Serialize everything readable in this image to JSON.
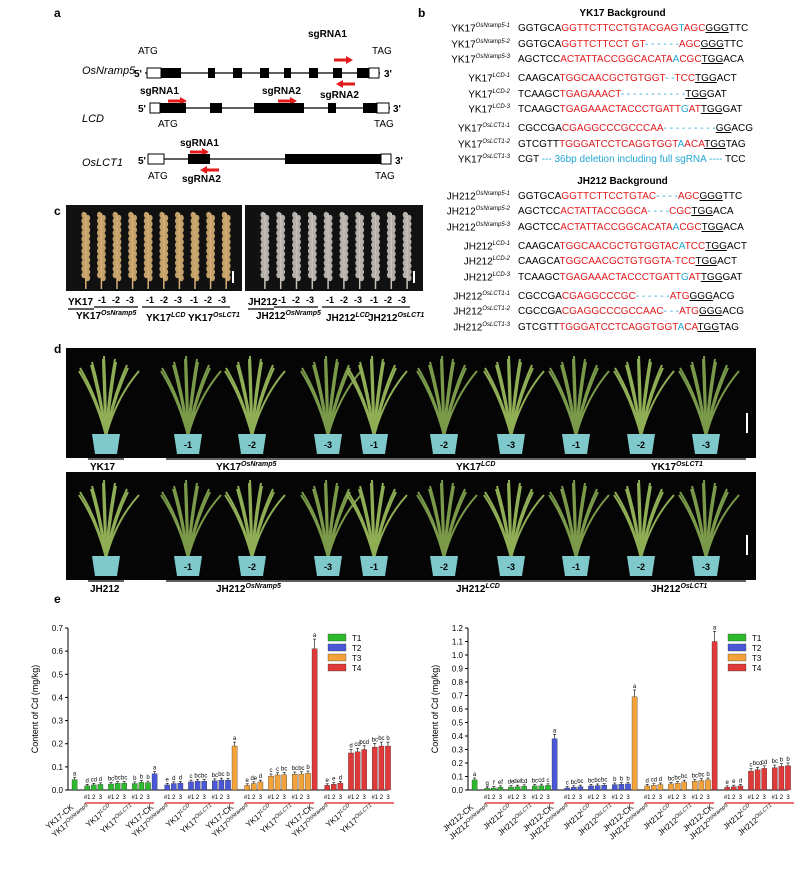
{
  "panels": {
    "a": "a",
    "b": "b",
    "c": "c",
    "d": "d",
    "e": "e"
  },
  "panel_a": {
    "genes": [
      {
        "name": "OsNramp5",
        "start": "ATG",
        "stop": "TAG",
        "five": "5'",
        "three": "3'",
        "sg1": "sgRNA1",
        "sg2": "sgRNA2"
      },
      {
        "name": "LCD",
        "start": "ATG",
        "stop": "TAG",
        "five": "5'",
        "three": "3'",
        "sg1": "sgRNA1",
        "sg2": "sgRNA2"
      },
      {
        "name": "OsLCT1",
        "start": "ATG",
        "stop": "TAG",
        "five": "5'",
        "three": "3'",
        "sg1": "sgRNA1",
        "sg2": "sgRNA2"
      }
    ]
  },
  "panel_b": {
    "yk_title": "YK17  Background",
    "jh_title": "JH212 Background",
    "yk_rows": [
      {
        "base": "YK17",
        "sup": "OsNramp5-1",
        "seq": [
          [
            "k",
            "GGTGCA"
          ],
          [
            "r",
            "GGTTCTTCCTGTACGAG"
          ],
          [
            "b",
            "T"
          ],
          [
            "r",
            "AGC"
          ],
          [
            "u",
            "GGG"
          ],
          [
            "k",
            "TTC"
          ]
        ]
      },
      {
        "base": "YK17",
        "sup": "OsNramp5-2",
        "seq": [
          [
            "k",
            "GGTGCA"
          ],
          [
            "r",
            "GGTTCTTCCT GT"
          ],
          [
            "b",
            "- - - - - -"
          ],
          [
            "r",
            "AGC"
          ],
          [
            "u",
            "GGG"
          ],
          [
            "k",
            "TTC"
          ]
        ]
      },
      {
        "base": "YK17",
        "sup": "OsNramp5-3",
        "seq": [
          [
            "k",
            "AGCTCC"
          ],
          [
            "r",
            "ACTATTACCGGCACATA"
          ],
          [
            "b",
            "A"
          ],
          [
            "r",
            "CGC"
          ],
          [
            "u",
            "TGG"
          ],
          [
            "k",
            "ACA"
          ]
        ]
      },
      {
        "base": "YK17",
        "sup": "LCD-1",
        "seq": [
          [
            "k",
            "CAAGCA"
          ],
          [
            "r",
            "TGGCAACGCTGTGGT"
          ],
          [
            "b",
            "- -"
          ],
          [
            "r",
            "TCC"
          ],
          [
            "u",
            "TGG"
          ],
          [
            "k",
            "ACT"
          ]
        ]
      },
      {
        "base": "YK17",
        "sup": "LCD-2",
        "seq": [
          [
            "k",
            "TCAAGC"
          ],
          [
            "r",
            "TGAGAAACT"
          ],
          [
            "b",
            "- - - - - - - - - - -"
          ],
          [
            "u",
            "TGG"
          ],
          [
            "k",
            "GAT"
          ]
        ]
      },
      {
        "base": "YK17",
        "sup": "LCD-3",
        "seq": [
          [
            "k",
            "TCAAGC"
          ],
          [
            "r",
            "TGAGAAACTACCCTGATT"
          ],
          [
            "b",
            "G"
          ],
          [
            "r",
            "AT"
          ],
          [
            "u",
            "TGG"
          ],
          [
            "k",
            "GAT"
          ]
        ]
      },
      {
        "base": "YK17",
        "sup": "OsLCT1-1",
        "seq": [
          [
            "k",
            "CGCCGA"
          ],
          [
            "r",
            "CGAGGCCCGCCCAA"
          ],
          [
            "b",
            "- - - - - - - - -"
          ],
          [
            "u",
            "GG"
          ],
          [
            "k",
            "ACG"
          ]
        ]
      },
      {
        "base": "YK17",
        "sup": "OsLCT1-2",
        "seq": [
          [
            "k",
            "GTCGTT"
          ],
          [
            "r",
            "TGGGATCCTCAGGTGGT"
          ],
          [
            "b",
            "A"
          ],
          [
            "r",
            "ACA"
          ],
          [
            "u",
            "TGG"
          ],
          [
            "k",
            "TAG"
          ]
        ]
      },
      {
        "base": "YK17",
        "sup": "OsLCT1-3",
        "seq": [
          [
            "k",
            "CGT"
          ],
          [
            "b",
            " --- 36bp deletion including full sgRNA ---- "
          ],
          [
            "k",
            "TCC"
          ]
        ]
      }
    ],
    "jh_rows": [
      {
        "base": "JH212",
        "sup": "OsNramp5-1",
        "seq": [
          [
            "k",
            "GGTGCA"
          ],
          [
            "r",
            "GGTTCTTCCTGTAC"
          ],
          [
            "b",
            "- - - -"
          ],
          [
            "r",
            "AGC"
          ],
          [
            "u",
            "GGG"
          ],
          [
            "k",
            "TTC"
          ]
        ]
      },
      {
        "base": "JH212",
        "sup": "OsNramp5-2",
        "seq": [
          [
            "k",
            "AGCTCC"
          ],
          [
            "r",
            "ACTATTACCGGCA"
          ],
          [
            "b",
            "- - - -"
          ],
          [
            "r",
            "CGC"
          ],
          [
            "u",
            "TGG"
          ],
          [
            "k",
            "ACA"
          ]
        ]
      },
      {
        "base": "JH212",
        "sup": "OsNramp5-3",
        "seq": [
          [
            "k",
            "AGCTCC"
          ],
          [
            "r",
            "ACTATTACCGGCACATA"
          ],
          [
            "b",
            "A"
          ],
          [
            "r",
            "CGC"
          ],
          [
            "u",
            "TGG"
          ],
          [
            "k",
            "ACA"
          ]
        ]
      },
      {
        "base": "JH212",
        "sup": "LCD-1",
        "seq": [
          [
            "k",
            "CAAGCA"
          ],
          [
            "r",
            "TGGCAACGCTGTGGTAC"
          ],
          [
            "b",
            "A"
          ],
          [
            "r",
            "TCC"
          ],
          [
            "u",
            "TGG"
          ],
          [
            "k",
            "ACT"
          ]
        ]
      },
      {
        "base": "JH212",
        "sup": "LCD-2",
        "seq": [
          [
            "k",
            "CAAGCA"
          ],
          [
            "r",
            "TGGCAACGCTGTGGTA"
          ],
          [
            "b",
            "-"
          ],
          [
            "r",
            "TCC"
          ],
          [
            "u",
            "TGG"
          ],
          [
            "k",
            "ACT"
          ]
        ]
      },
      {
        "base": "JH212",
        "sup": "LCD-3",
        "seq": [
          [
            "k",
            "TCAAGC"
          ],
          [
            "r",
            "TGAGAAACTACCCTGATT"
          ],
          [
            "b",
            "G"
          ],
          [
            "r",
            "AT"
          ],
          [
            "u",
            "TGG"
          ],
          [
            "k",
            "GAT"
          ]
        ]
      },
      {
        "base": "JH212",
        "sup": "OsLCT1-1",
        "seq": [
          [
            "k",
            "CGCCGA"
          ],
          [
            "r",
            "CGAGGCCCGC"
          ],
          [
            "b",
            "- - - - - -"
          ],
          [
            "r",
            "ATG"
          ],
          [
            "u",
            "GGG"
          ],
          [
            "k",
            "ACG"
          ]
        ]
      },
      {
        "base": "JH212",
        "sup": "OsLCT1-2",
        "seq": [
          [
            "k",
            "CGCCGA"
          ],
          [
            "r",
            "CGAGGCCCGCCAAC"
          ],
          [
            "b",
            "- - -"
          ],
          [
            "r",
            "ATG"
          ],
          [
            "u",
            "GGG"
          ],
          [
            "k",
            "ACG"
          ]
        ]
      },
      {
        "base": "JH212",
        "sup": "OsLCT1-3",
        "seq": [
          [
            "k",
            "GTCGTT"
          ],
          [
            "r",
            "TGGGATCCTCAGGTGGT"
          ],
          [
            "b",
            "A"
          ],
          [
            "r",
            "CA"
          ],
          [
            "u",
            "TGG"
          ],
          [
            "k",
            "TAG"
          ]
        ]
      }
    ]
  },
  "panel_c": {
    "yk": {
      "wt": "YK17",
      "labels": [
        {
          "base": "YK17",
          "sup": "OsNramp5"
        },
        {
          "base": "YK17",
          "sup": "LCD"
        },
        {
          "base": "YK17",
          "sup": "OsLCT1"
        }
      ],
      "nums": [
        "-1",
        "-2",
        "-3"
      ]
    },
    "jh": {
      "wt": "JH212",
      "labels": [
        {
          "base": "JH212",
          "sup": "OsNramp5"
        },
        {
          "base": "JH212",
          "sup": "LCD"
        },
        {
          "base": "JH212",
          "sup": "OsLCT1"
        }
      ],
      "nums": [
        "-1",
        "-2",
        "-3"
      ]
    }
  },
  "panel_d": {
    "yk": {
      "wt": "YK17",
      "labels": [
        {
          "base": "YK17",
          "sup": "OsNramp5"
        },
        {
          "base": "YK17",
          "sup": "LCD"
        },
        {
          "base": "YK17",
          "sup": "OsLCT1"
        }
      ]
    },
    "jh": {
      "wt": "JH212",
      "labels": [
        {
          "base": "JH212",
          "sup": "OsNramp5"
        },
        {
          "base": "JH212",
          "sup": "LCD"
        },
        {
          "base": "JH212",
          "sup": "OsLCT1"
        }
      ]
    },
    "pot_nums": [
      "-1",
      "-2",
      "-3",
      "-1",
      "-2",
      "-3",
      "-1",
      "-2",
      "-3"
    ]
  },
  "colors": {
    "T1": "#2db82d",
    "T2": "#4a57d6",
    "T3": "#f2a23a",
    "T4": "#e0393a",
    "red_text": "#e3191c",
    "blue_text": "#23a6d5"
  },
  "chart_data": [
    {
      "type": "bar",
      "ylabel": "Content of Cd (mg/kg)",
      "ylim": [
        0,
        0.7
      ],
      "yticks": [
        "0.0",
        "0.1",
        "0.2",
        "0.3",
        "0.4",
        "0.5",
        "0.6",
        "0.7"
      ],
      "legend": [
        "T1",
        "T2",
        "T3",
        "T4"
      ],
      "group_labels": [
        {
          "base": "YK17-CK",
          "sup": ""
        },
        {
          "base": "YK17",
          "sup": "OsNramp5"
        },
        {
          "base": "YK17",
          "sup": "LCD"
        },
        {
          "base": "YK17",
          "sup": "OsLCT1"
        }
      ],
      "sub_ticks": [
        "#1",
        "2",
        "3"
      ],
      "series": [
        {
          "name": "T1",
          "values": [
            0.045,
            0.018,
            0.022,
            0.024,
            0.026,
            0.029,
            0.03,
            0.028,
            0.033,
            0.031
          ],
          "letters": [
            "a",
            "d",
            "cd",
            "d",
            "bc",
            "bc",
            "bc",
            "b",
            "b",
            "b"
          ]
        },
        {
          "name": "T2",
          "values": [
            0.07,
            0.022,
            0.028,
            0.03,
            0.035,
            0.038,
            0.038,
            0.04,
            0.043,
            0.043
          ],
          "letters": [
            "a",
            "e",
            "d",
            "d",
            "c",
            "bc",
            "bc",
            "bc",
            "bc",
            "b"
          ]
        },
        {
          "name": "T3",
          "values": [
            0.19,
            0.02,
            0.028,
            0.035,
            0.06,
            0.065,
            0.066,
            0.068,
            0.069,
            0.072
          ],
          "letters": [
            "a",
            "e",
            "de",
            "d",
            "c",
            "c",
            "bc",
            "bc",
            "bc",
            "b"
          ]
        },
        {
          "name": "T4",
          "values": [
            0.61,
            0.02,
            0.025,
            0.03,
            0.16,
            0.165,
            0.175,
            0.185,
            0.19,
            0.19
          ],
          "letters": [
            "a",
            "e",
            "e",
            "d",
            "d",
            "cd",
            "bcd",
            "bc",
            "bc",
            "b"
          ]
        }
      ]
    },
    {
      "type": "bar",
      "ylabel": "Content of Cd (mg/kg)",
      "ylim": [
        0,
        1.2
      ],
      "yticks": [
        "0.0",
        "0.1",
        "0.2",
        "0.3",
        "0.4",
        "0.5",
        "0.6",
        "0.7",
        "0.8",
        "0.9",
        "1.0",
        "1.1",
        "1.2"
      ],
      "legend": [
        "T1",
        "T2",
        "T3",
        "T4"
      ],
      "group_labels": [
        {
          "base": "JH212-CK",
          "sup": ""
        },
        {
          "base": "JH212",
          "sup": "OsNramp5"
        },
        {
          "base": "JH212",
          "sup": "LCD"
        },
        {
          "base": "JH212",
          "sup": "OsLCT1"
        }
      ],
      "sub_ticks": [
        "#1",
        "2",
        "3"
      ],
      "series": [
        {
          "name": "T1",
          "values": [
            0.075,
            0.012,
            0.015,
            0.02,
            0.022,
            0.025,
            0.027,
            0.03,
            0.032,
            0.034
          ],
          "letters": [
            "a",
            "g",
            "f",
            "ef",
            "de",
            "def",
            "cd",
            "bc",
            "cd",
            "c"
          ]
        },
        {
          "name": "T2",
          "values": [
            0.38,
            0.015,
            0.02,
            0.025,
            0.03,
            0.033,
            0.036,
            0.04,
            0.043,
            0.045
          ],
          "letters": [
            "a",
            "c",
            "bc",
            "bc",
            "bc",
            "bc",
            "bc",
            "b",
            "b",
            "b"
          ]
        },
        {
          "name": "T3",
          "values": [
            0.69,
            0.03,
            0.035,
            0.04,
            0.045,
            0.05,
            0.06,
            0.065,
            0.07,
            0.075
          ],
          "letters": [
            "a",
            "d",
            "cd",
            "d",
            "bc",
            "bc",
            "bc",
            "bc",
            "bc",
            "b"
          ]
        },
        {
          "name": "T4",
          "values": [
            1.1,
            0.02,
            0.025,
            0.03,
            0.14,
            0.15,
            0.16,
            0.165,
            0.175,
            0.18
          ],
          "letters": [
            "a",
            "e",
            "e",
            "d",
            "c",
            "bcd",
            "cd",
            "bc",
            "b",
            "b"
          ]
        }
      ]
    }
  ]
}
